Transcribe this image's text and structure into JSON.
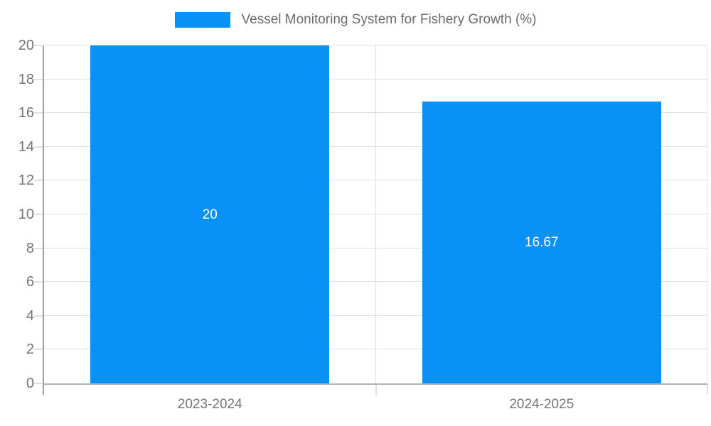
{
  "legend": {
    "label": "Vessel Monitoring System for Fishery Growth (%)"
  },
  "chart_data": {
    "type": "bar",
    "title": "Vessel Monitoring System for Fishery Growth (%)",
    "categories": [
      "2023-2024",
      "2024-2025"
    ],
    "values": [
      20,
      16.67
    ],
    "bar_labels": [
      "20",
      "16.67"
    ],
    "xlabel": "",
    "ylabel": "",
    "ylim": [
      0,
      20
    ],
    "yticks": [
      0,
      2,
      4,
      6,
      8,
      10,
      12,
      14,
      16,
      18,
      20
    ],
    "grid": true,
    "legend_position": "top",
    "bar_width_fraction": 0.72,
    "colors": {
      "bar": "#0892f8",
      "grid": "#e0e0e0",
      "axis_y": "#9e9e9e",
      "axis_x": "#b3b3b3",
      "tick_text": "#757575",
      "legend_text": "#6b6b6b",
      "bar_label_text": "#ffffff"
    }
  }
}
